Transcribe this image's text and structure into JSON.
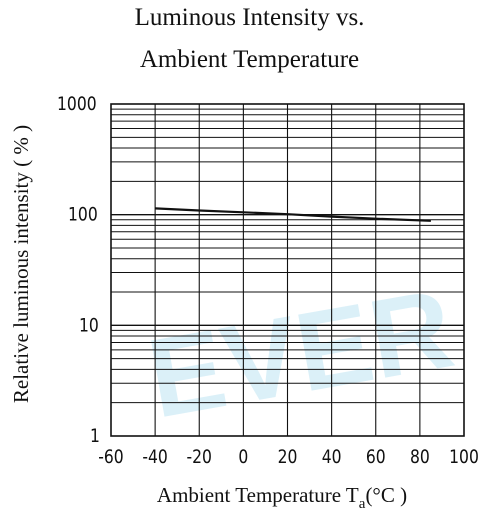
{
  "watermark": "EVER",
  "chart_data": {
    "type": "line",
    "title_line1": "Luminous Intensity vs.",
    "title_line2": "Ambient Temperature",
    "xlabel_prefix": "Ambient Temperature T",
    "xlabel_sub": "a",
    "xlabel_suffix": "(°C )",
    "ylabel": "Relative luminous intensity ( % )",
    "y_scale": "log",
    "xlim": [
      -60,
      100
    ],
    "ylim": [
      1,
      1000
    ],
    "x_ticks": [
      "-60",
      "-40",
      "-20",
      "0",
      "20",
      "40",
      "60",
      "80",
      "100"
    ],
    "y_ticks": [
      "1",
      "10",
      "100",
      "1000"
    ],
    "grid": true,
    "series": [
      {
        "x": [
          -40,
          -20,
          0,
          20,
          40,
          60,
          85
        ],
        "y": [
          114,
          109,
          105,
          101,
          96,
          92,
          88
        ],
        "color": "#111111"
      }
    ]
  }
}
